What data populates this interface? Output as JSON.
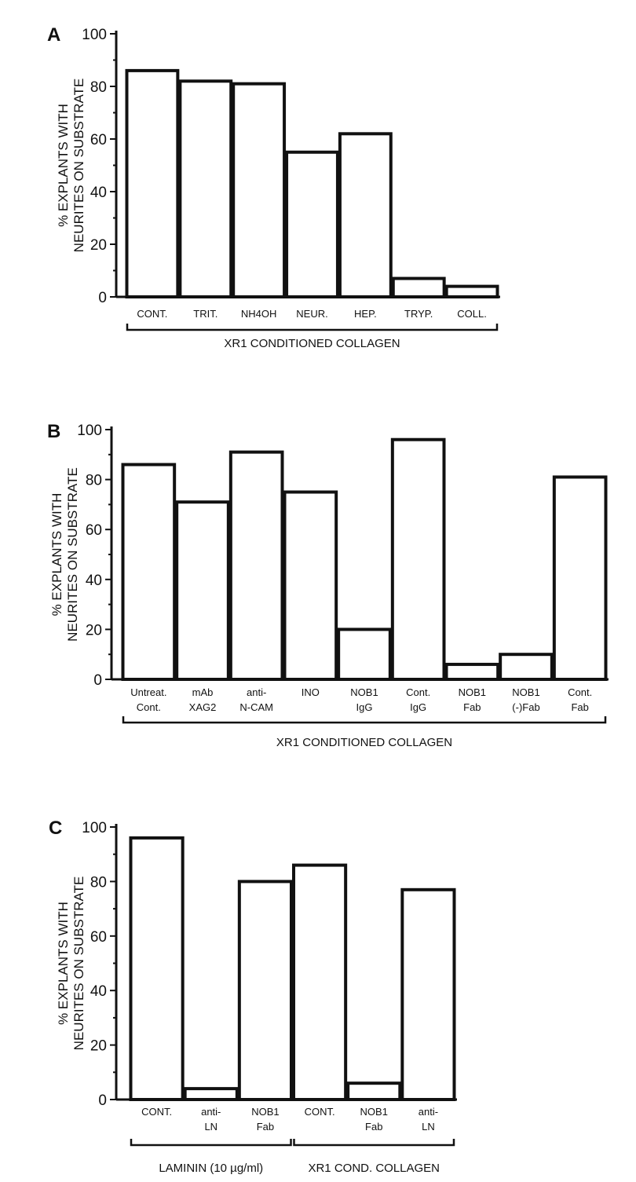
{
  "chart_data": [
    {
      "type": "bar",
      "panel": "A",
      "ylabel": [
        "% EXPLANTS WITH",
        "NEURITES ON SUBSTRATE"
      ],
      "ylim": [
        0,
        100
      ],
      "yticks": [
        "0",
        "20",
        "40",
        "60",
        "80",
        "100"
      ],
      "categories": [
        [
          "CONT."
        ],
        [
          "TRIT."
        ],
        [
          "NH4OH"
        ],
        [
          "NEUR."
        ],
        [
          "HEP."
        ],
        [
          "TRYP."
        ],
        [
          "COLL."
        ]
      ],
      "values": [
        86,
        82,
        81,
        55,
        62,
        7,
        4
      ],
      "groups": [
        {
          "label": "XR1 CONDITIONED COLLAGEN",
          "from": 0,
          "to": 6
        }
      ]
    },
    {
      "type": "bar",
      "panel": "B",
      "ylabel": [
        "% EXPLANTS WITH",
        "NEURITES ON SUBSTRATE"
      ],
      "ylim": [
        0,
        100
      ],
      "yticks": [
        "0",
        "20",
        "40",
        "60",
        "80",
        "100"
      ],
      "categories": [
        [
          "Untreat.",
          "Cont."
        ],
        [
          "mAb",
          "XAG2"
        ],
        [
          "anti-",
          "N-CAM"
        ],
        [
          "INO"
        ],
        [
          "NOB1",
          "IgG"
        ],
        [
          "Cont.",
          "IgG"
        ],
        [
          "NOB1",
          "Fab"
        ],
        [
          "NOB1",
          "(-)Fab"
        ],
        [
          "Cont.",
          "Fab"
        ]
      ],
      "values": [
        86,
        71,
        91,
        75,
        20,
        96,
        6,
        10,
        81
      ],
      "groups": [
        {
          "label": "XR1 CONDITIONED COLLAGEN",
          "from": 0,
          "to": 8
        }
      ]
    },
    {
      "type": "bar",
      "panel": "C",
      "ylabel": [
        "% EXPLANTS WITH",
        "NEURITES ON SUBSTRATE"
      ],
      "ylim": [
        0,
        100
      ],
      "yticks": [
        "0",
        "20",
        "40",
        "60",
        "80",
        "100"
      ],
      "categories": [
        [
          "CONT."
        ],
        [
          "anti-",
          "LN"
        ],
        [
          "NOB1",
          "Fab"
        ],
        [
          "CONT."
        ],
        [
          "NOB1",
          "Fab"
        ],
        [
          "anti-",
          "LN"
        ]
      ],
      "values": [
        96,
        4,
        80,
        86,
        6,
        77
      ],
      "groups": [
        {
          "label": "LAMININ (10 µg/ml)",
          "from": 0,
          "to": 2
        },
        {
          "label": "XR1 COND. COLLAGEN",
          "from": 3,
          "to": 5
        }
      ]
    }
  ]
}
